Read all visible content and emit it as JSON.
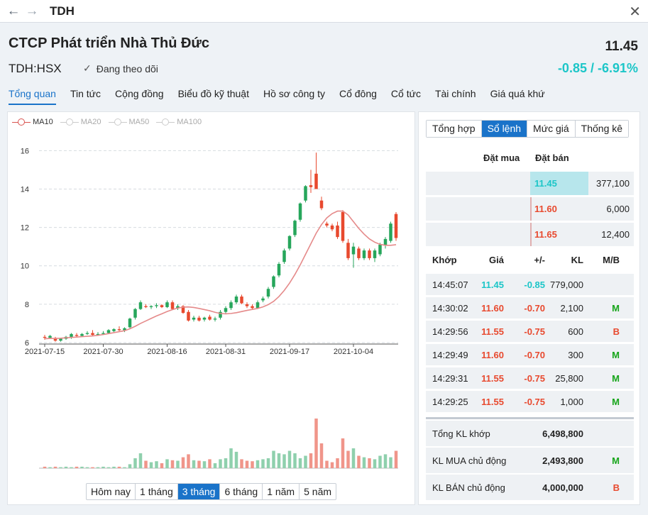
{
  "window": {
    "title": "TDH"
  },
  "header": {
    "company": "CTCP Phát triển Nhà Thủ Đức",
    "ticker": "TDH:HSX",
    "follow_label": "Đang theo dõi",
    "price": "11.45",
    "change": "-0.85 / -6.91%"
  },
  "tabs": [
    "Tổng quan",
    "Tin tức",
    "Cộng đồng",
    "Biểu đồ kỹ thuật",
    "Hồ sơ công ty",
    "Cổ đông",
    "Cổ tức",
    "Tài chính",
    "Giá quá khứ"
  ],
  "active_tab": 0,
  "chart_data": {
    "type": "candlestick",
    "legend": [
      "MA10",
      "MA20",
      "MA50",
      "MA100"
    ],
    "legend_active": "MA10",
    "y_ticks": [
      6,
      8,
      10,
      12,
      14,
      16
    ],
    "ylim": [
      6,
      16.9
    ],
    "x_tick_labels": [
      "2021-07-15",
      "2021-07-30",
      "2021-08-16",
      "2021-08-31",
      "2021-09-17",
      "2021-10-04"
    ],
    "x_tick_index": [
      0,
      11,
      23,
      34,
      46,
      58
    ],
    "candles": [
      [
        6.3,
        6.4,
        6.15,
        6.25
      ],
      [
        6.25,
        6.4,
        6.2,
        6.35
      ],
      [
        6.2,
        6.3,
        6.05,
        6.1
      ],
      [
        6.1,
        6.25,
        6.05,
        6.2
      ],
      [
        6.2,
        6.35,
        6.15,
        6.3
      ],
      [
        6.3,
        6.5,
        6.2,
        6.45
      ],
      [
        6.4,
        6.5,
        6.3,
        6.35
      ],
      [
        6.35,
        6.5,
        6.3,
        6.45
      ],
      [
        6.45,
        6.6,
        6.4,
        6.5
      ],
      [
        6.5,
        6.65,
        6.35,
        6.4
      ],
      [
        6.4,
        6.55,
        6.35,
        6.45
      ],
      [
        6.45,
        6.6,
        6.4,
        6.5
      ],
      [
        6.5,
        6.7,
        6.45,
        6.65
      ],
      [
        6.6,
        6.75,
        6.55,
        6.7
      ],
      [
        6.7,
        6.85,
        6.6,
        6.65
      ],
      [
        6.65,
        6.8,
        6.55,
        6.75
      ],
      [
        6.8,
        7.3,
        6.75,
        7.25
      ],
      [
        7.3,
        7.8,
        7.2,
        7.75
      ],
      [
        7.75,
        8.2,
        7.7,
        8.1
      ],
      [
        7.9,
        8.0,
        7.8,
        7.85
      ],
      [
        7.85,
        7.95,
        7.75,
        7.9
      ],
      [
        7.9,
        8.05,
        7.8,
        7.95
      ],
      [
        7.95,
        8.0,
        7.8,
        7.85
      ],
      [
        7.85,
        8.2,
        7.8,
        8.1
      ],
      [
        8.1,
        8.2,
        7.7,
        7.75
      ],
      [
        7.8,
        8.0,
        7.7,
        7.9
      ],
      [
        7.9,
        7.95,
        7.5,
        7.55
      ],
      [
        7.6,
        7.7,
        7.1,
        7.15
      ],
      [
        7.2,
        7.4,
        7.1,
        7.3
      ],
      [
        7.3,
        7.4,
        7.1,
        7.15
      ],
      [
        7.2,
        7.35,
        7.1,
        7.3
      ],
      [
        7.35,
        7.45,
        7.15,
        7.2
      ],
      [
        7.2,
        7.35,
        7.1,
        7.25
      ],
      [
        7.3,
        7.7,
        7.2,
        7.6
      ],
      [
        7.6,
        7.9,
        7.5,
        7.8
      ],
      [
        7.8,
        8.2,
        7.7,
        8.1
      ],
      [
        8.1,
        8.5,
        8.0,
        8.4
      ],
      [
        8.4,
        8.5,
        8.0,
        8.05
      ],
      [
        8.0,
        8.1,
        7.8,
        7.9
      ],
      [
        7.9,
        8.0,
        7.7,
        7.8
      ],
      [
        7.8,
        8.2,
        7.75,
        8.1
      ],
      [
        8.2,
        8.4,
        8.1,
        8.3
      ],
      [
        8.4,
        8.9,
        8.3,
        8.8
      ],
      [
        8.9,
        9.5,
        8.8,
        9.45
      ],
      [
        9.5,
        10.2,
        9.4,
        10.1
      ],
      [
        10.2,
        10.9,
        10.1,
        10.8
      ],
      [
        10.9,
        11.6,
        10.8,
        11.55
      ],
      [
        11.6,
        12.4,
        11.5,
        12.35
      ],
      [
        12.4,
        13.3,
        12.3,
        13.25
      ],
      [
        13.4,
        14.2,
        13.3,
        14.15
      ],
      [
        14.2,
        15.0,
        13.8,
        14.1
      ],
      [
        14.8,
        15.9,
        14.0,
        14.0
      ],
      [
        13.4,
        13.6,
        12.9,
        13.0
      ],
      [
        12.2,
        12.3,
        12.0,
        12.1
      ],
      [
        12.1,
        12.2,
        11.8,
        11.9
      ],
      [
        12.1,
        12.3,
        11.4,
        11.5
      ],
      [
        12.8,
        12.9,
        11.2,
        11.3
      ],
      [
        11.2,
        11.4,
        10.3,
        10.4
      ],
      [
        10.6,
        11.2,
        9.9,
        11.0
      ],
      [
        10.9,
        11.0,
        10.3,
        10.4
      ],
      [
        10.4,
        10.9,
        10.3,
        10.8
      ],
      [
        10.8,
        10.9,
        10.3,
        10.4
      ],
      [
        10.4,
        10.9,
        10.2,
        10.8
      ],
      [
        10.6,
        11.2,
        10.5,
        11.1
      ],
      [
        11.1,
        11.5,
        10.9,
        11.4
      ],
      [
        11.3,
        12.3,
        11.2,
        12.2
      ],
      [
        12.7,
        12.8,
        11.3,
        11.45
      ]
    ],
    "ma10": [
      6.2,
      6.22,
      6.22,
      6.23,
      6.25,
      6.27,
      6.29,
      6.31,
      6.33,
      6.35,
      6.38,
      6.42,
      6.47,
      6.52,
      6.57,
      6.62,
      6.72,
      6.85,
      7.0,
      7.13,
      7.26,
      7.39,
      7.5,
      7.62,
      7.72,
      7.8,
      7.85,
      7.86,
      7.83,
      7.78,
      7.72,
      7.66,
      7.58,
      7.52,
      7.5,
      7.52,
      7.56,
      7.62,
      7.68,
      7.73,
      7.78,
      7.86,
      7.98,
      8.15,
      8.4,
      8.72,
      9.1,
      9.55,
      10.05,
      10.6,
      11.15,
      11.7,
      12.15,
      12.5,
      12.72,
      12.85,
      12.85,
      12.65,
      12.3,
      11.95,
      11.65,
      11.4,
      11.23,
      11.12,
      11.07,
      11.07,
      11.1
    ],
    "volume": [
      3,
      2,
      3,
      2,
      3,
      2,
      3,
      3,
      2,
      2,
      2,
      3,
      2,
      3,
      3,
      2,
      8,
      20,
      30,
      15,
      12,
      14,
      10,
      18,
      16,
      15,
      22,
      28,
      16,
      15,
      14,
      18,
      10,
      18,
      20,
      40,
      33,
      18,
      15,
      14,
      16,
      18,
      20,
      35,
      30,
      28,
      35,
      30,
      20,
      25,
      30,
      100,
      50,
      15,
      12,
      20,
      60,
      35,
      40,
      25,
      22,
      20,
      18,
      25,
      28,
      22,
      35
    ],
    "volume_max": 100
  },
  "ranges": [
    "Hôm nay",
    "1 tháng",
    "3 tháng",
    "6 tháng",
    "1 năm",
    "5 năm"
  ],
  "active_range": 2,
  "right_tabs": [
    "Tổng hợp",
    "Sổ lệnh",
    "Mức giá",
    "Thống kê"
  ],
  "active_right_tab": 1,
  "orderbook": {
    "buy_header": "Đặt mua",
    "sell_header": "Đặt bán",
    "rows": [
      {
        "price": "11.45",
        "volume": "377,100",
        "cls": "up",
        "share": 0.98
      },
      {
        "price": "11.60",
        "volume": "6,000",
        "cls": "down",
        "share": 0.02
      },
      {
        "price": "11.65",
        "volume": "12,400",
        "cls": "down",
        "share": 0.03
      }
    ]
  },
  "trades": {
    "headers": {
      "time": "Khớp",
      "price": "Giá",
      "change": "+/-",
      "volume": "KL",
      "mb": "M/B"
    },
    "rows": [
      {
        "time": "14:45:07",
        "price": "11.45",
        "change": "-0.85",
        "volume": "779,000",
        "mb": "",
        "pcls": "up",
        "mcls": ""
      },
      {
        "time": "14:30:02",
        "price": "11.60",
        "change": "-0.70",
        "volume": "2,100",
        "mb": "M",
        "pcls": "down",
        "mcls": "green"
      },
      {
        "time": "14:29:56",
        "price": "11.55",
        "change": "-0.75",
        "volume": "600",
        "mb": "B",
        "pcls": "down",
        "mcls": "red"
      },
      {
        "time": "14:29:49",
        "price": "11.60",
        "change": "-0.70",
        "volume": "300",
        "mb": "M",
        "pcls": "down",
        "mcls": "green"
      },
      {
        "time": "14:29:31",
        "price": "11.55",
        "change": "-0.75",
        "volume": "25,800",
        "mb": "M",
        "pcls": "down",
        "mcls": "green"
      },
      {
        "time": "14:29:25",
        "price": "11.55",
        "change": "-0.75",
        "volume": "1,000",
        "mb": "M",
        "pcls": "down",
        "mcls": "green"
      }
    ]
  },
  "summary": [
    {
      "label": "Tổng KL khớp",
      "value": "6,498,800",
      "mb": "",
      "vcls": "",
      "mcls": ""
    },
    {
      "label": "KL MUA chủ động",
      "value": "2,493,800",
      "mb": "M",
      "vcls": "green",
      "mcls": "green"
    },
    {
      "label": "KL BÁN chủ động",
      "value": "4,000,000",
      "mb": "B",
      "vcls": "red",
      "mcls": "red"
    }
  ],
  "colors": {
    "accent": "#1a73c9",
    "up": "#1cc6c8",
    "down": "#e8492e",
    "buy": "#16a51a",
    "candle_up": "#26a65b",
    "candle_down": "#e8492e",
    "ma10": "#e58a8a"
  }
}
